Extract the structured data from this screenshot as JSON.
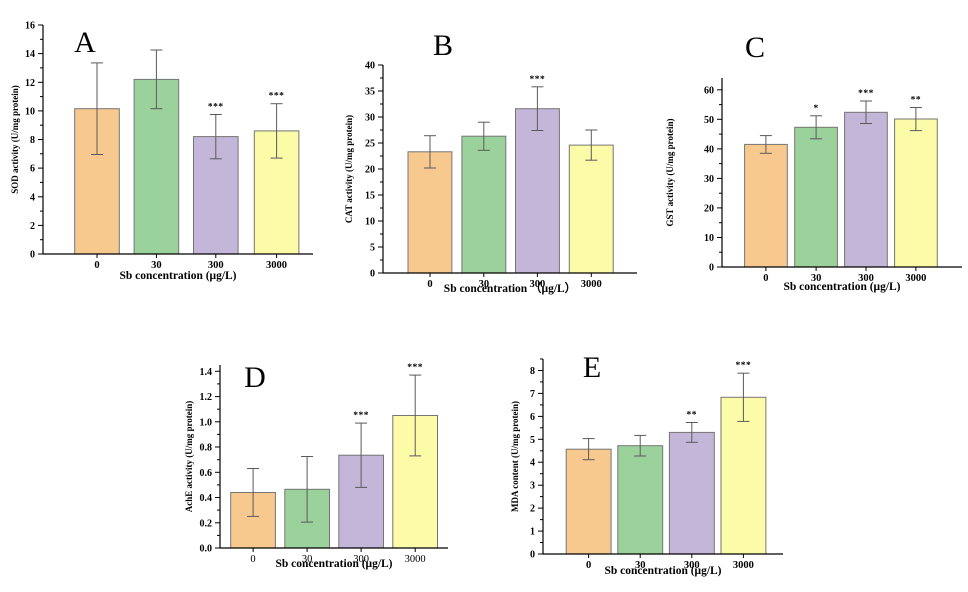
{
  "figure": {
    "background": "#ffffff",
    "bar_fill_colors": [
      "#F8C98F",
      "#9BD29B",
      "#C4B6D8",
      "#FBFBA8"
    ],
    "bar_border_color": "#757575",
    "error_bar_color": "#5a5a5a",
    "axis_color": "#000000",
    "significance_color": "#1a1a1a"
  },
  "chart_data": [
    {
      "id": "A",
      "type": "bar",
      "panel_label": "A",
      "ylabel": "SOD activity (U/mg protein)",
      "xlabel": "Sb concentration (μg/L)",
      "categories": [
        "0",
        "30",
        "300",
        "3000"
      ],
      "values": [
        10.15,
        12.2,
        8.2,
        8.6
      ],
      "errors": [
        3.2,
        2.05,
        1.55,
        1.9
      ],
      "significance": [
        "",
        "",
        "***",
        "***"
      ],
      "ylim": [
        0,
        16
      ],
      "ytick_step": 2,
      "ytick_decimals": 0,
      "minor_ticks": true,
      "grid": false,
      "legend": "none"
    },
    {
      "id": "B",
      "type": "bar",
      "panel_label": "B",
      "ylabel": "CAT activity (U/mg protein)",
      "xlabel": "Sb concentration （μg/L）",
      "categories": [
        "0",
        "30",
        "300",
        "3000"
      ],
      "values": [
        23.3,
        26.3,
        31.6,
        24.6
      ],
      "errors": [
        3.1,
        2.7,
        4.2,
        2.9
      ],
      "significance": [
        "",
        "",
        "***",
        ""
      ],
      "ylim": [
        0,
        40
      ],
      "ytick_step": 5,
      "ytick_decimals": 0,
      "minor_ticks": true,
      "grid": false,
      "legend": "none"
    },
    {
      "id": "C",
      "type": "bar",
      "panel_label": "C",
      "ylabel": "GST activity (U/mg protein)",
      "xlabel": "Sb concentration (μg/L)",
      "categories": [
        "0",
        "30",
        "300",
        "3000"
      ],
      "values": [
        41.5,
        47.3,
        52.4,
        50.1
      ],
      "errors": [
        3.0,
        3.9,
        3.8,
        3.9
      ],
      "significance": [
        "",
        "*",
        "***",
        "**"
      ],
      "ylim": [
        0,
        64
      ],
      "ytick_step": 10,
      "ytick_decimals": 0,
      "minor_ticks": true,
      "grid": false,
      "legend": "none"
    },
    {
      "id": "D",
      "type": "bar",
      "panel_label": "D",
      "ylabel": "AchE activity (U/mg protein)",
      "xlabel": "Sb concentration (μg/L)",
      "categories": [
        "0",
        "30",
        "300",
        "3000"
      ],
      "values": [
        0.44,
        0.465,
        0.735,
        1.05
      ],
      "errors": [
        0.19,
        0.26,
        0.255,
        0.32
      ],
      "significance": [
        "",
        "",
        "***",
        "***"
      ],
      "ylim": [
        0,
        1.45
      ],
      "ytick_step": 0.2,
      "ytick_decimals": 1,
      "minor_ticks": true,
      "grid": false,
      "legend": "none"
    },
    {
      "id": "E",
      "type": "bar",
      "panel_label": "E",
      "ylabel": "MDA content (U/mg protein)",
      "xlabel": "Sb concentration (μg/L)",
      "categories": [
        "0",
        "30",
        "300",
        "3000"
      ],
      "values": [
        4.57,
        4.72,
        5.3,
        6.83
      ],
      "errors": [
        0.46,
        0.45,
        0.43,
        1.05
      ],
      "significance": [
        "",
        "",
        "**",
        "***"
      ],
      "ylim": [
        0,
        8.5
      ],
      "ytick_step": 1,
      "ytick_decimals": 0,
      "minor_ticks": true,
      "grid": false,
      "legend": "none"
    }
  ]
}
